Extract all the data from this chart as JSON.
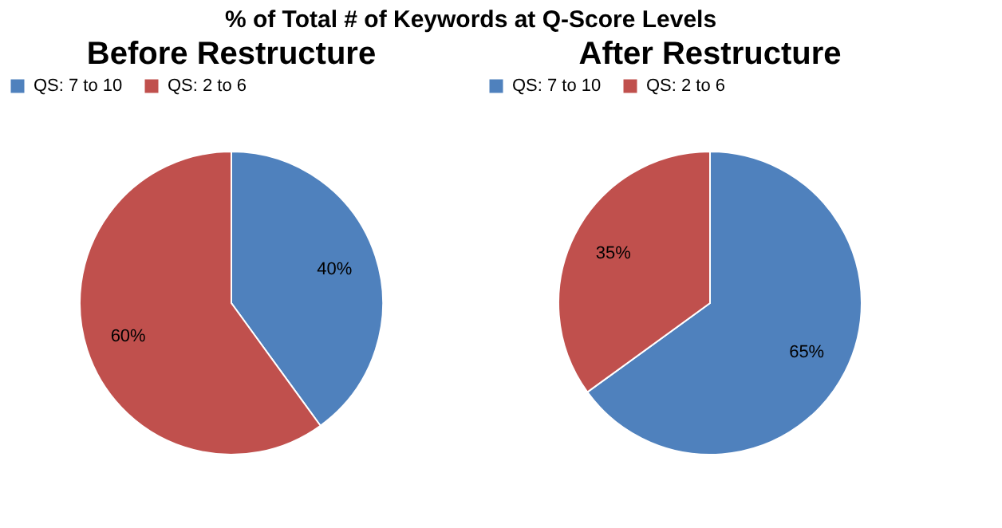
{
  "chart_data": [
    {
      "type": "pie",
      "title": "Before Restructure",
      "annotations": [
        "% of Total # of Keywords at Q-Score Levels"
      ],
      "categories": [
        "QS: 7 to 10",
        "QS: 2 to 6"
      ],
      "values": [
        40,
        60
      ],
      "colors": [
        "#4f81bd",
        "#c0504d"
      ],
      "value_labels": [
        "40%",
        "60%"
      ],
      "legend": "top"
    },
    {
      "type": "pie",
      "title": "After Restructure",
      "categories": [
        "QS: 7 to 10",
        "QS: 2 to 6"
      ],
      "values": [
        65,
        35
      ],
      "colors": [
        "#4f81bd",
        "#c0504d"
      ],
      "value_labels": [
        "65%",
        "35%"
      ],
      "legend": "top"
    }
  ]
}
